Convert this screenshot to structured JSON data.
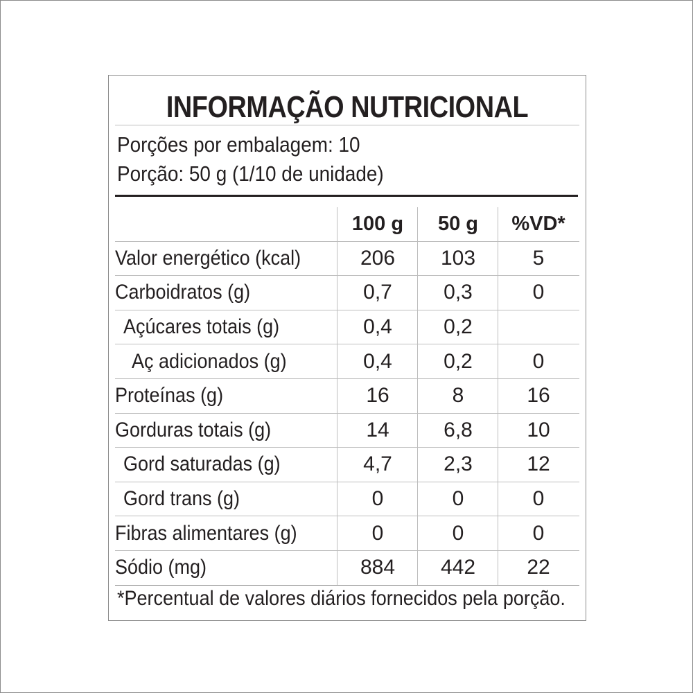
{
  "title": "INFORMAÇÃO NUTRICIONAL",
  "serving": {
    "servings_per_package": "Porções por embalagem: 10",
    "serving_size": "Porção: 50 g (1/10 de unidade)"
  },
  "columns": {
    "col1": "100 g",
    "col2": "50 g",
    "col3": "%VD*"
  },
  "rows": [
    {
      "label": "Valor energético (kcal)",
      "per100": "206",
      "per50": "103",
      "vd": "5"
    },
    {
      "label": "Carboidratos (g)",
      "per100": "0,7",
      "per50": "0,3",
      "vd": "0"
    },
    {
      "label": "Açúcares totais (g)",
      "per100": "0,4",
      "per50": "0,2",
      "vd": ""
    },
    {
      "label": "Aç adicionados (g)",
      "per100": "0,4",
      "per50": "0,2",
      "vd": "0"
    },
    {
      "label": "Proteínas (g)",
      "per100": "16",
      "per50": "8",
      "vd": "16"
    },
    {
      "label": "Gorduras totais (g)",
      "per100": "14",
      "per50": "6,8",
      "vd": "10"
    },
    {
      "label": "Gord saturadas (g)",
      "per100": "4,7",
      "per50": "2,3",
      "vd": "12"
    },
    {
      "label": "Gord trans (g)",
      "per100": "0",
      "per50": "0",
      "vd": "0"
    },
    {
      "label": "Fibras alimentares (g)",
      "per100": "0",
      "per50": "0",
      "vd": "0"
    },
    {
      "label": "Sódio (mg)",
      "per100": "884",
      "per50": "442",
      "vd": "22"
    }
  ],
  "footnote": "*Percentual de valores diários fornecidos pela porção."
}
